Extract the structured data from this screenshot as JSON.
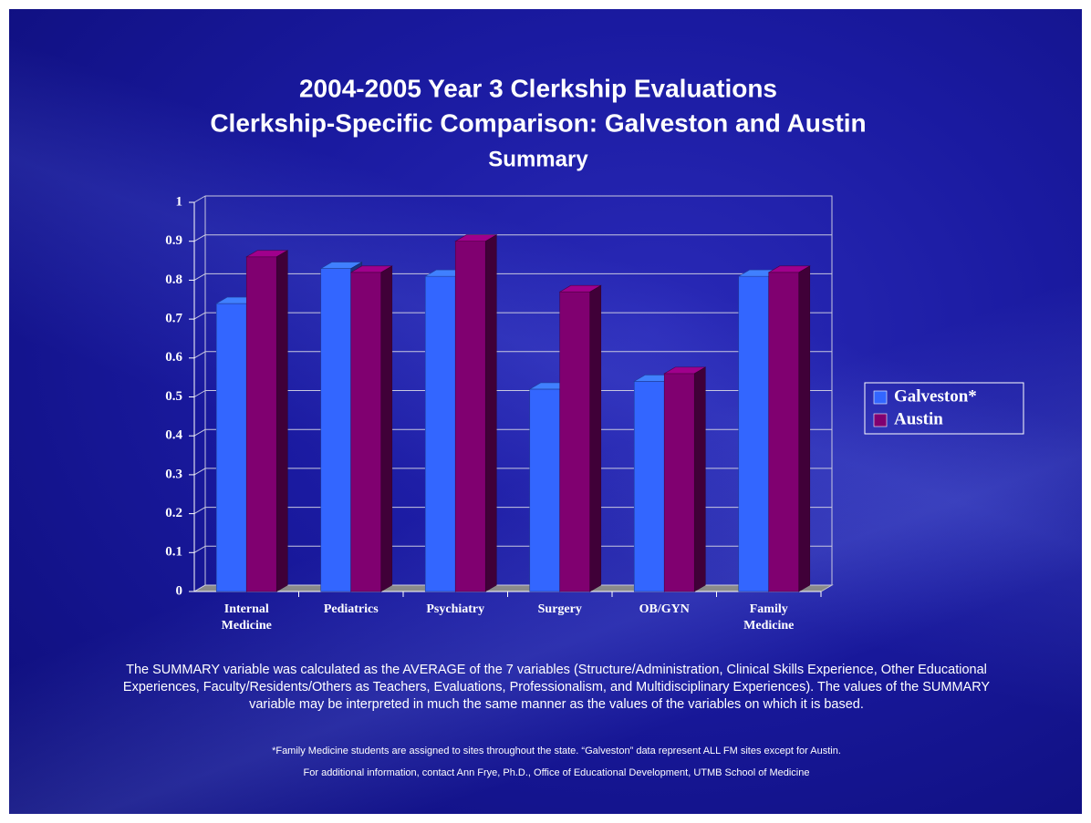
{
  "chart_data": {
    "type": "bar3d",
    "title": [
      "2004-2005 Year 3 Clerkship Evaluations",
      "Clerkship-Specific Comparison: Galveston and Austin"
    ],
    "subtitle": "Summary",
    "categories": [
      "Internal Medicine",
      "Pediatrics",
      "Psychiatry",
      "Surgery",
      "OB/GYN",
      "Family Medicine"
    ],
    "series": [
      {
        "name": "Galveston*",
        "color": "#3366ff",
        "values": [
          0.74,
          0.83,
          0.81,
          0.52,
          0.54,
          0.81
        ]
      },
      {
        "name": "Austin",
        "color": "#800070",
        "values": [
          0.86,
          0.82,
          0.9,
          0.77,
          0.56,
          0.82
        ]
      }
    ],
    "ylim": [
      0,
      1
    ],
    "yticks": [
      0,
      0.1,
      0.2,
      0.3,
      0.4,
      0.5,
      0.6,
      0.7,
      0.8,
      0.9,
      1
    ],
    "grid": true,
    "legend": "right",
    "annotations": [
      "The SUMMARY variable was calculated as the AVERAGE of the 7 variables (Structure/Administration, Clinical Skills Experience, Other Educational Experiences, Faculty/Residents/Others as Teachers, Evaluations, Professionalism, and Multidisciplinary Experiences).   The values of the SUMMARY variable may be interpreted in much the same manner as the values of the variables on which it is based.",
      "*Family Medicine students are assigned to sites throughout the state.  “Galveston” data represent ALL FM sites except for Austin.",
      "For additional information, contact Ann Frye, Ph.D., Office of Educational Development, UTMB School of Medicine"
    ]
  }
}
